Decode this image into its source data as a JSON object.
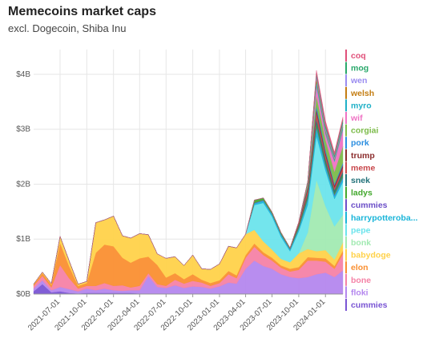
{
  "title": "Memecoins market caps",
  "subtitle": "excl. Dogecoin, Shiba Inu",
  "chart_data": {
    "type": "area",
    "stacked": true,
    "y_tick_labels": [
      "$0B",
      "$1B",
      "$2B",
      "$3B",
      "$4B"
    ],
    "y_tick_values": [
      0,
      1,
      2,
      3,
      4
    ],
    "x_tick_labels": [
      "2021-07-01",
      "2021-10-01",
      "2022-01-01",
      "2022-04-01",
      "2022-07-01",
      "2022-10-01",
      "2023-01-01",
      "2023-04-01",
      "2023-07-01",
      "2023-10-01",
      "2024-01-01"
    ],
    "x": [
      "2021-04-01",
      "2021-05-01",
      "2021-06-01",
      "2021-07-01",
      "2021-08-01",
      "2021-09-01",
      "2021-10-01",
      "2021-11-01",
      "2021-12-01",
      "2022-01-01",
      "2022-02-01",
      "2022-03-01",
      "2022-04-01",
      "2022-05-01",
      "2022-06-01",
      "2022-07-01",
      "2022-08-01",
      "2022-09-01",
      "2022-10-01",
      "2022-11-01",
      "2022-12-01",
      "2023-01-01",
      "2023-02-01",
      "2023-03-01",
      "2023-04-01",
      "2023-05-01",
      "2023-06-01",
      "2023-07-01",
      "2023-08-01",
      "2023-09-01",
      "2023-10-01",
      "2023-11-01",
      "2023-12-01",
      "2024-01-01",
      "2024-02-01",
      "2024-03-01"
    ],
    "ylabel": "",
    "xlabel": "",
    "ylim": [
      0,
      4.45
    ],
    "grid": true,
    "legend": "right",
    "series": [
      {
        "name": "cummies",
        "color": "#7a55d4",
        "values": [
          0.05,
          0.18,
          0.03,
          0.05,
          0.02,
          0.01,
          0.02,
          0.02,
          0.02,
          0.02,
          0.02,
          0.02,
          0.01,
          0.01,
          0.01,
          0.01,
          0.01,
          0.01,
          0.01,
          0.01,
          0.01,
          0.01,
          0.01,
          0.01,
          0.01,
          0.01,
          0.01,
          0.01,
          0.01,
          0.01,
          0.01,
          0.01,
          0.01,
          0.01,
          0.01,
          0.01
        ]
      },
      {
        "name": "floki",
        "color": "#b487ee",
        "values": [
          0.05,
          0.07,
          0.04,
          0.08,
          0.07,
          0.04,
          0.08,
          0.05,
          0.08,
          0.05,
          0.04,
          0.05,
          0.06,
          0.32,
          0.12,
          0.1,
          0.15,
          0.1,
          0.13,
          0.12,
          0.09,
          0.13,
          0.2,
          0.18,
          0.45,
          0.6,
          0.5,
          0.45,
          0.35,
          0.3,
          0.28,
          0.3,
          0.35,
          0.38,
          0.3,
          0.42
        ]
      },
      {
        "name": "bone",
        "color": "#f582a6",
        "values": [
          0.05,
          0.08,
          0.05,
          0.4,
          0.2,
          0.05,
          0.05,
          0.08,
          0.1,
          0.08,
          0.1,
          0.05,
          0.08,
          0.05,
          0.05,
          0.04,
          0.1,
          0.08,
          0.1,
          0.08,
          0.05,
          0.06,
          0.15,
          0.1,
          0.2,
          0.25,
          0.2,
          0.15,
          0.12,
          0.1,
          0.15,
          0.3,
          0.25,
          0.2,
          0.15,
          0.3
        ]
      },
      {
        "name": "elon",
        "color": "#fa8f31",
        "values": [
          0.02,
          0.05,
          0.05,
          0.4,
          0.22,
          0.05,
          0.05,
          0.6,
          0.7,
          0.72,
          0.5,
          0.45,
          0.5,
          0.3,
          0.35,
          0.15,
          0.12,
          0.08,
          0.12,
          0.05,
          0.05,
          0.05,
          0.06,
          0.05,
          0.05,
          0.06,
          0.05,
          0.05,
          0.04,
          0.05,
          0.05,
          0.06,
          0.05,
          0.06,
          0.05,
          0.06
        ]
      },
      {
        "name": "babydoge",
        "color": "#ffd24a",
        "values": [
          0.01,
          0.02,
          0.02,
          0.12,
          0.1,
          0.03,
          0.03,
          0.55,
          0.45,
          0.55,
          0.4,
          0.45,
          0.45,
          0.4,
          0.2,
          0.35,
          0.3,
          0.25,
          0.35,
          0.2,
          0.25,
          0.3,
          0.45,
          0.5,
          0.38,
          0.25,
          0.2,
          0.15,
          0.12,
          0.12,
          0.25,
          0.15,
          0.12,
          0.15,
          0.12,
          0.15
        ]
      },
      {
        "name": "bonk",
        "color": "#a2eab2",
        "values": [
          0,
          0,
          0,
          0,
          0,
          0,
          0,
          0,
          0,
          0,
          0,
          0,
          0,
          0,
          0,
          0,
          0,
          0,
          0,
          0,
          0,
          0,
          0,
          0,
          0,
          0,
          0,
          0,
          0,
          0,
          0,
          0.3,
          1.3,
          0.8,
          0.6,
          0.5
        ]
      },
      {
        "name": "pepe",
        "color": "#6be4ec",
        "values": [
          0,
          0,
          0,
          0,
          0,
          0,
          0,
          0,
          0,
          0,
          0,
          0,
          0,
          0,
          0,
          0,
          0,
          0,
          0,
          0,
          0,
          0,
          0,
          0,
          0,
          0.45,
          0.7,
          0.6,
          0.4,
          0.2,
          0.4,
          0.5,
          0.8,
          0.65,
          0.5,
          0.6
        ]
      },
      {
        "name": "harrypotteroba...",
        "color": "#1ab5d9",
        "values": [
          0,
          0,
          0,
          0,
          0,
          0,
          0,
          0,
          0,
          0,
          0,
          0,
          0,
          0,
          0,
          0,
          0,
          0,
          0,
          0,
          0,
          0,
          0,
          0,
          0,
          0.03,
          0.04,
          0.04,
          0.04,
          0.03,
          0.05,
          0.1,
          0.15,
          0.08,
          0.06,
          0.07
        ]
      },
      {
        "name": "cummies",
        "color": "#6c4fc8",
        "values": [
          0,
          0,
          0,
          0,
          0,
          0,
          0,
          0,
          0,
          0,
          0,
          0,
          0,
          0,
          0,
          0,
          0,
          0,
          0,
          0,
          0,
          0,
          0,
          0,
          0,
          0.01,
          0.01,
          0.01,
          0.01,
          0.01,
          0.01,
          0.02,
          0.02,
          0.02,
          0.02,
          0.02
        ]
      },
      {
        "name": "ladys",
        "color": "#43a82e",
        "values": [
          0,
          0,
          0,
          0,
          0,
          0,
          0,
          0,
          0,
          0,
          0,
          0,
          0,
          0,
          0,
          0,
          0,
          0,
          0,
          0,
          0,
          0,
          0,
          0,
          0,
          0.05,
          0.04,
          0.03,
          0.03,
          0.02,
          0.03,
          0.04,
          0.06,
          0.04,
          0.03,
          0.04
        ]
      },
      {
        "name": "snek",
        "color": "#23727a",
        "values": [
          0,
          0,
          0,
          0,
          0,
          0,
          0,
          0,
          0,
          0,
          0,
          0,
          0,
          0,
          0,
          0,
          0,
          0,
          0,
          0,
          0,
          0,
          0,
          0,
          0,
          0,
          0,
          0,
          0,
          0,
          0.02,
          0.04,
          0.08,
          0.06,
          0.05,
          0.06
        ]
      },
      {
        "name": "meme",
        "color": "#c8474b",
        "values": [
          0,
          0,
          0,
          0,
          0,
          0,
          0,
          0,
          0,
          0,
          0,
          0,
          0,
          0,
          0,
          0,
          0,
          0,
          0,
          0,
          0,
          0,
          0,
          0,
          0,
          0,
          0,
          0,
          0,
          0,
          0.03,
          0.08,
          0.12,
          0.08,
          0.05,
          0.07
        ]
      },
      {
        "name": "trump",
        "color": "#8b2c2c",
        "values": [
          0,
          0,
          0,
          0,
          0,
          0,
          0,
          0,
          0,
          0,
          0,
          0,
          0,
          0,
          0,
          0,
          0,
          0,
          0,
          0,
          0,
          0,
          0,
          0,
          0,
          0,
          0,
          0,
          0,
          0,
          0.02,
          0.04,
          0.06,
          0.05,
          0.04,
          0.05
        ]
      },
      {
        "name": "pork",
        "color": "#2b8ee0",
        "values": [
          0,
          0,
          0,
          0,
          0,
          0,
          0,
          0,
          0,
          0,
          0,
          0,
          0,
          0,
          0,
          0,
          0,
          0,
          0,
          0,
          0,
          0,
          0,
          0,
          0,
          0,
          0,
          0,
          0,
          0,
          0,
          0.02,
          0.06,
          0.05,
          0.03,
          0.04
        ]
      },
      {
        "name": "corgiai",
        "color": "#7cbb4a",
        "values": [
          0,
          0,
          0,
          0,
          0,
          0,
          0,
          0,
          0,
          0,
          0,
          0,
          0,
          0,
          0,
          0,
          0,
          0,
          0,
          0,
          0,
          0,
          0,
          0,
          0,
          0,
          0,
          0,
          0,
          0,
          0,
          0.05,
          0.18,
          0.18,
          0.22,
          0.3
        ]
      },
      {
        "name": "wif",
        "color": "#ef72c4",
        "values": [
          0,
          0,
          0,
          0,
          0,
          0,
          0,
          0,
          0,
          0,
          0,
          0,
          0,
          0,
          0,
          0,
          0,
          0,
          0,
          0,
          0,
          0,
          0,
          0,
          0,
          0,
          0,
          0,
          0,
          0,
          0,
          0.01,
          0.18,
          0.1,
          0.18,
          0.3
        ]
      },
      {
        "name": "myro",
        "color": "#1fb0c7",
        "values": [
          0,
          0,
          0,
          0,
          0,
          0,
          0,
          0,
          0,
          0,
          0,
          0,
          0,
          0,
          0,
          0,
          0,
          0,
          0,
          0,
          0,
          0,
          0,
          0,
          0,
          0,
          0,
          0,
          0,
          0,
          0,
          0.01,
          0.08,
          0.04,
          0.03,
          0.05
        ]
      },
      {
        "name": "welsh",
        "color": "#c47d12",
        "values": [
          0,
          0,
          0,
          0,
          0,
          0,
          0,
          0,
          0,
          0,
          0,
          0,
          0,
          0,
          0,
          0,
          0,
          0,
          0,
          0,
          0,
          0,
          0,
          0,
          0,
          0,
          0,
          0,
          0,
          0,
          0.01,
          0.02,
          0.07,
          0.03,
          0.02,
          0.03
        ]
      },
      {
        "name": "wen",
        "color": "#9a8cf0",
        "values": [
          0,
          0,
          0,
          0,
          0,
          0,
          0,
          0,
          0,
          0,
          0,
          0,
          0,
          0,
          0,
          0,
          0,
          0,
          0,
          0,
          0,
          0,
          0,
          0,
          0,
          0,
          0,
          0,
          0,
          0,
          0,
          0,
          0.05,
          0.04,
          0.03,
          0.04
        ]
      },
      {
        "name": "mog",
        "color": "#2aa86b",
        "values": [
          0,
          0,
          0,
          0,
          0,
          0,
          0,
          0,
          0,
          0,
          0,
          0,
          0,
          0,
          0,
          0,
          0,
          0,
          0,
          0,
          0,
          0,
          0,
          0,
          0,
          0,
          0,
          0,
          0,
          0,
          0,
          0,
          0.03,
          0.05,
          0.04,
          0.06
        ]
      },
      {
        "name": "coq",
        "color": "#e0507a",
        "values": [
          0,
          0,
          0,
          0,
          0,
          0,
          0,
          0,
          0,
          0,
          0,
          0,
          0,
          0,
          0,
          0,
          0,
          0,
          0,
          0,
          0,
          0,
          0,
          0,
          0,
          0,
          0,
          0,
          0,
          0,
          0,
          0,
          0.05,
          0.08,
          0.05,
          0.05
        ]
      }
    ]
  }
}
